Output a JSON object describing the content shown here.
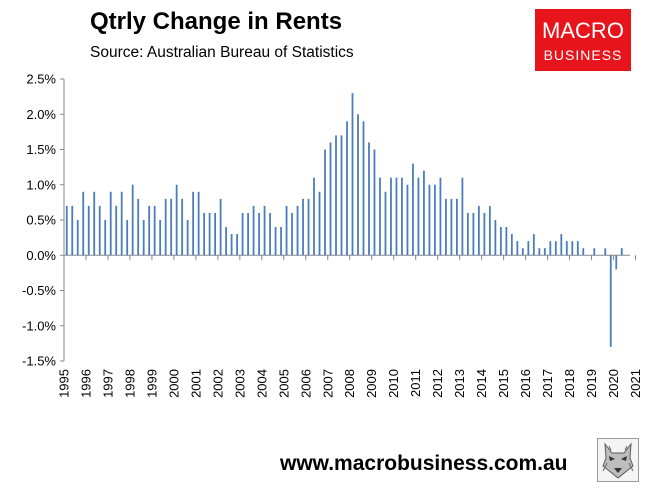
{
  "chart_data": {
    "type": "bar",
    "title": "Qtrly Change in Rents",
    "subtitle": "Source: Australian Bureau of Statistics",
    "xlabel": "",
    "ylabel": "",
    "ylim": [
      -1.5,
      2.5
    ],
    "y_ticks": [
      "2.5%",
      "2.0%",
      "1.5%",
      "1.0%",
      "0.5%",
      "0.0%",
      "-0.5%",
      "-1.0%",
      "-1.5%"
    ],
    "y_tick_values": [
      2.5,
      2.0,
      1.5,
      1.0,
      0.5,
      0.0,
      -0.5,
      -1.0,
      -1.5
    ],
    "x_ticks": [
      "1995",
      "1996",
      "1997",
      "1998",
      "1999",
      "2000",
      "2001",
      "2002",
      "2003",
      "2004",
      "2005",
      "2006",
      "2007",
      "2008",
      "2009",
      "2010",
      "2011",
      "2012",
      "2013",
      "2014",
      "2015",
      "2016",
      "2017",
      "2018",
      "2019",
      "2020",
      "2021"
    ],
    "grid": false,
    "bar_color": "#4a7ebb",
    "values": [
      0.7,
      0.7,
      0.5,
      0.9,
      0.7,
      0.9,
      0.7,
      0.5,
      0.9,
      0.7,
      0.9,
      0.5,
      1.0,
      0.8,
      0.5,
      0.7,
      0.7,
      0.5,
      0.8,
      0.8,
      1.0,
      0.8,
      0.5,
      0.9,
      0.9,
      0.6,
      0.6,
      0.6,
      0.8,
      0.4,
      0.3,
      0.3,
      0.6,
      0.6,
      0.7,
      0.6,
      0.7,
      0.6,
      0.4,
      0.4,
      0.7,
      0.6,
      0.7,
      0.8,
      0.8,
      1.1,
      0.9,
      1.5,
      1.6,
      1.7,
      1.7,
      1.9,
      2.3,
      2.0,
      1.9,
      1.6,
      1.5,
      1.1,
      0.9,
      1.1,
      1.1,
      1.1,
      1.0,
      1.3,
      1.1,
      1.2,
      1.0,
      1.0,
      1.1,
      0.8,
      0.8,
      0.8,
      1.1,
      0.6,
      0.6,
      0.7,
      0.6,
      0.7,
      0.5,
      0.4,
      0.4,
      0.3,
      0.2,
      0.1,
      0.2,
      0.3,
      0.1,
      0.1,
      0.2,
      0.2,
      0.3,
      0.2,
      0.2,
      0.2,
      0.1,
      0.0,
      0.1,
      0.0,
      0.1,
      -1.3,
      -0.2,
      0.1,
      0.0
    ]
  },
  "branding": {
    "logo_line1": "MACRO",
    "logo_line2": "BUSINESS",
    "url": "www.macrobusiness.com.au"
  }
}
